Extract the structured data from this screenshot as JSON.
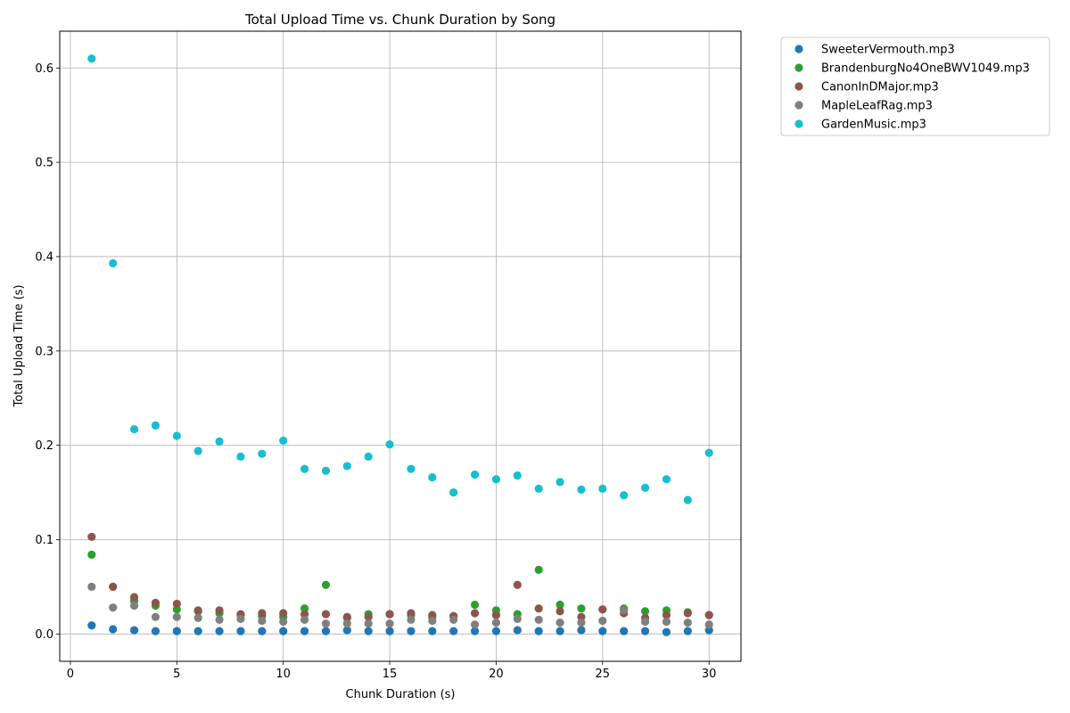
{
  "chart_data": {
    "type": "scatter",
    "title": "Total Upload Time vs. Chunk Duration by Song",
    "xlabel": "Chunk Duration (s)",
    "ylabel": "Total Upload Time (s)",
    "xlim": [
      -0.5,
      31.5
    ],
    "ylim": [
      -0.029,
      0.639
    ],
    "xticks": [
      0,
      5,
      10,
      15,
      20,
      25,
      30
    ],
    "yticks": [
      0.0,
      0.1,
      0.2,
      0.3,
      0.4,
      0.5,
      0.6
    ],
    "xtick_labels": [
      "0",
      "5",
      "10",
      "15",
      "20",
      "25",
      "30"
    ],
    "ytick_labels": [
      "0.0",
      "0.1",
      "0.2",
      "0.3",
      "0.4",
      "0.5",
      "0.6"
    ],
    "grid": true,
    "legend_position": "outside-top-right",
    "x": [
      1,
      2,
      3,
      4,
      5,
      6,
      7,
      8,
      9,
      10,
      11,
      12,
      13,
      14,
      15,
      16,
      17,
      18,
      19,
      20,
      21,
      22,
      23,
      24,
      25,
      26,
      27,
      28,
      29,
      30
    ],
    "series": [
      {
        "name": "SweeterVermouth.mp3",
        "color": "#1f77b4",
        "values": [
          0.009,
          0.005,
          0.004,
          0.003,
          0.003,
          0.003,
          0.003,
          0.003,
          0.003,
          0.003,
          0.003,
          0.003,
          0.004,
          0.003,
          0.003,
          0.003,
          0.003,
          0.003,
          0.003,
          0.003,
          0.004,
          0.003,
          0.003,
          0.004,
          0.003,
          0.003,
          0.003,
          0.002,
          0.003,
          0.004
        ]
      },
      {
        "name": "BrandenburgNo4OneBWV1049.mp3",
        "color": "#2ca02c",
        "values": [
          0.084,
          0.05,
          0.035,
          0.03,
          0.026,
          0.024,
          0.022,
          0.02,
          0.019,
          0.018,
          0.027,
          0.052,
          0.017,
          0.021,
          0.021,
          0.02,
          0.018,
          0.019,
          0.031,
          0.025,
          0.021,
          0.068,
          0.031,
          0.027,
          0.026,
          0.027,
          0.024,
          0.025,
          0.023,
          0.02
        ]
      },
      {
        "name": "CanonInDMajor.mp3",
        "color": "#8c564b",
        "values": [
          0.103,
          0.05,
          0.039,
          0.033,
          0.032,
          0.025,
          0.025,
          0.021,
          0.022,
          0.022,
          0.021,
          0.021,
          0.018,
          0.018,
          0.021,
          0.022,
          0.02,
          0.019,
          0.022,
          0.02,
          0.052,
          0.027,
          0.024,
          0.018,
          0.026,
          0.022,
          0.017,
          0.02,
          0.022,
          0.02
        ]
      },
      {
        "name": "MapleLeafRag.mp3",
        "color": "#7f7f7f",
        "values": [
          0.05,
          0.028,
          0.03,
          0.018,
          0.018,
          0.017,
          0.015,
          0.016,
          0.014,
          0.013,
          0.015,
          0.011,
          0.011,
          0.011,
          0.011,
          0.015,
          0.014,
          0.015,
          0.01,
          0.012,
          0.016,
          0.015,
          0.012,
          0.012,
          0.014,
          0.025,
          0.013,
          0.013,
          0.012,
          0.01
        ]
      },
      {
        "name": "GardenMusic.mp3",
        "color": "#17becf",
        "values": [
          0.61,
          0.393,
          0.217,
          0.221,
          0.21,
          0.194,
          0.204,
          0.188,
          0.191,
          0.205,
          0.175,
          0.173,
          0.178,
          0.188,
          0.201,
          0.175,
          0.166,
          0.15,
          0.169,
          0.164,
          0.168,
          0.154,
          0.161,
          0.153,
          0.154,
          0.147,
          0.155,
          0.164,
          0.142,
          0.192
        ]
      }
    ]
  }
}
